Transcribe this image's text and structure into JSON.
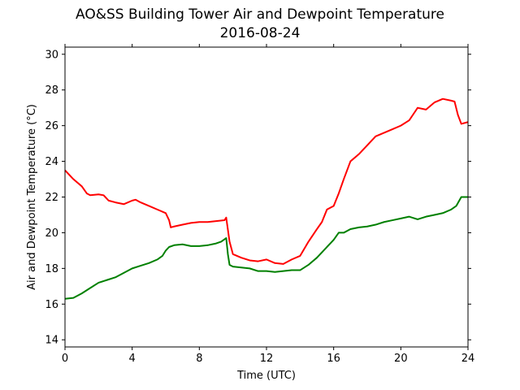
{
  "chart_data": {
    "type": "line",
    "title": "AO&SS Building Tower Air and Dewpoint Temperature",
    "subtitle": "2016-08-24",
    "xlabel": "Time (UTC)",
    "ylabel": "Air and Dewpoint Temperature (°C)",
    "xlim": [
      0,
      24
    ],
    "ylim": [
      13.6,
      30.4
    ],
    "xticks": [
      0,
      4,
      8,
      12,
      16,
      20,
      24
    ],
    "yticks": [
      14,
      16,
      18,
      20,
      22,
      24,
      26,
      28,
      30
    ],
    "grid": false,
    "legend": "none",
    "series": [
      {
        "color": "#ff0000",
        "x": [
          0,
          0.5,
          1,
          1.3,
          1.5,
          2,
          2.3,
          2.6,
          3,
          3.5,
          4,
          4.2,
          4.5,
          5,
          5.5,
          6,
          6.2,
          6.3,
          6.5,
          7,
          7.5,
          8,
          8.5,
          9,
          9.5,
          9.6,
          9.8,
          10,
          10.5,
          11,
          11.5,
          12,
          12.5,
          13,
          13.5,
          14,
          14.5,
          15,
          15.3,
          15.6,
          16,
          16.3,
          16.6,
          17,
          17.5,
          18,
          18.5,
          19,
          19.5,
          20,
          20.5,
          21,
          21.5,
          22,
          22.5,
          23,
          23.2,
          23.4,
          23.6,
          24
        ],
        "y": [
          23.5,
          23.0,
          22.6,
          22.2,
          22.1,
          22.15,
          22.1,
          21.8,
          21.7,
          21.6,
          21.8,
          21.85,
          21.7,
          21.5,
          21.3,
          21.1,
          20.7,
          20.3,
          20.35,
          20.45,
          20.55,
          20.6,
          20.6,
          20.65,
          20.7,
          20.85,
          19.5,
          18.8,
          18.6,
          18.45,
          18.4,
          18.5,
          18.3,
          18.25,
          18.5,
          18.7,
          19.5,
          20.2,
          20.6,
          21.3,
          21.5,
          22.2,
          23.0,
          24.0,
          24.4,
          24.9,
          25.4,
          25.6,
          25.8,
          26.0,
          26.3,
          27.0,
          26.9,
          27.3,
          27.5,
          27.4,
          27.35,
          26.6,
          26.1,
          26.2
        ]
      },
      {
        "color": "#008000",
        "x": [
          0,
          0.5,
          1,
          1.5,
          2,
          2.5,
          3,
          3.5,
          4,
          4.5,
          5,
          5.5,
          5.8,
          6,
          6.2,
          6.5,
          7,
          7.5,
          8,
          8.5,
          9,
          9.3,
          9.6,
          9.7,
          9.8,
          10,
          10.5,
          11,
          11.5,
          12,
          12.5,
          13,
          13.5,
          14,
          14.5,
          15,
          15.5,
          16,
          16.3,
          16.6,
          17,
          17.5,
          18,
          18.5,
          19,
          19.5,
          20,
          20.5,
          21,
          21.5,
          22,
          22.5,
          23,
          23.3,
          23.6,
          24
        ],
        "y": [
          16.3,
          16.35,
          16.6,
          16.9,
          17.2,
          17.35,
          17.5,
          17.75,
          18.0,
          18.15,
          18.3,
          18.5,
          18.7,
          19.0,
          19.2,
          19.3,
          19.35,
          19.25,
          19.25,
          19.3,
          19.4,
          19.5,
          19.7,
          18.8,
          18.2,
          18.1,
          18.05,
          18.0,
          17.85,
          17.85,
          17.8,
          17.85,
          17.9,
          17.9,
          18.2,
          18.6,
          19.1,
          19.6,
          20.0,
          20.0,
          20.2,
          20.3,
          20.35,
          20.45,
          20.6,
          20.7,
          20.8,
          20.9,
          20.75,
          20.9,
          21.0,
          21.1,
          21.3,
          21.5,
          22.0,
          22.0
        ]
      }
    ]
  }
}
